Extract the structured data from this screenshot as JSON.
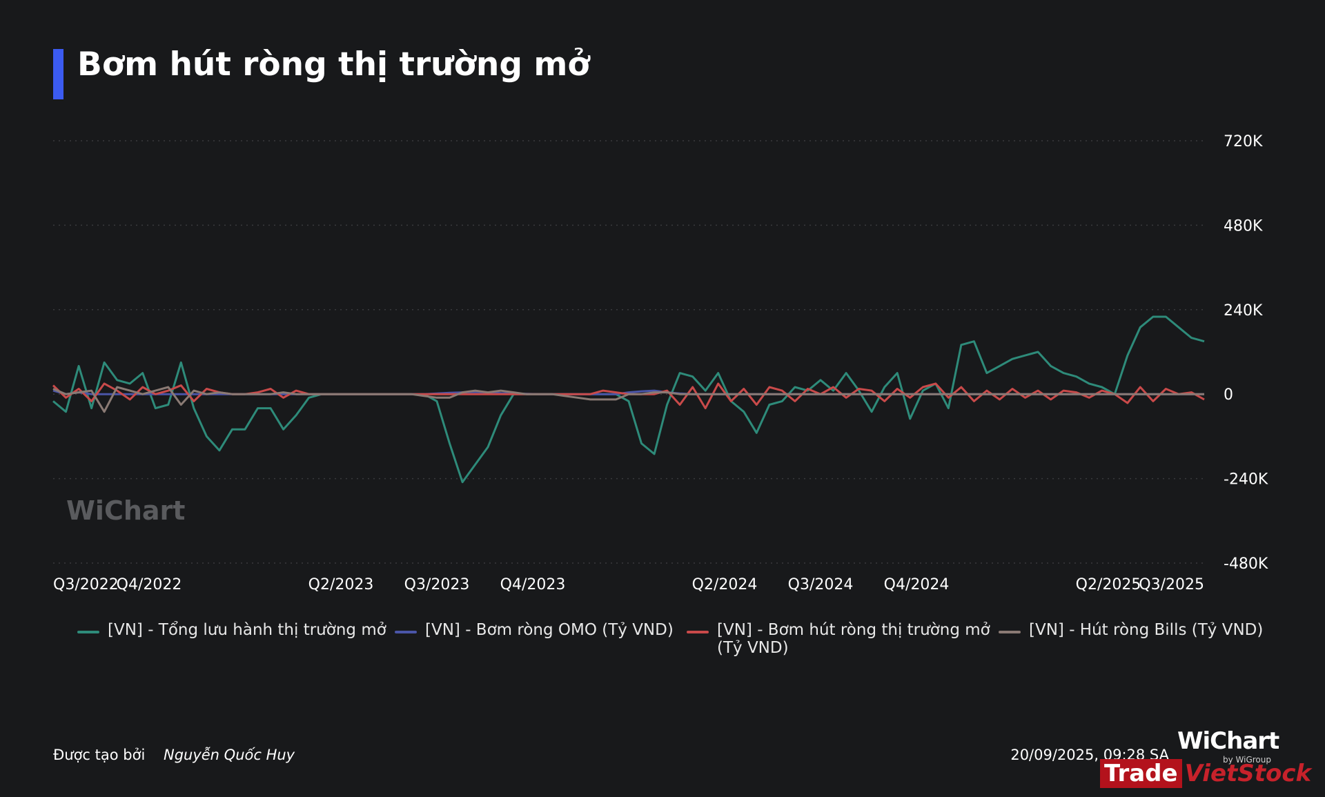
{
  "title": "Bơm hút ròng thị trường mở",
  "watermark": "WiChart",
  "footer": {
    "created_by_label": "Được tạo bởi",
    "author": "Nguyễn Quốc Huy",
    "timestamp": "20/09/2025, 09:28 SA"
  },
  "brand": {
    "name": "WiChart",
    "sub": "by WiGroup",
    "trade": "Trade",
    "vietstock": "VietStock"
  },
  "colors": {
    "background": "#18191b",
    "accent": "#3b5bf0",
    "grid": "#3a3b3e"
  },
  "chart_data": {
    "type": "line",
    "title": "Bơm hút ròng thị trường mở",
    "x_tick_labels": [
      "Q3/2022",
      "Q4/2022",
      "Q2/2023",
      "Q3/2023",
      "Q4/2023",
      "Q2/2024",
      "Q3/2024",
      "Q4/2024",
      "Q2/2025",
      "Q3/2025"
    ],
    "y_tick_labels": [
      "720K",
      "480K",
      "240K",
      "0",
      "-240K",
      "-480K"
    ],
    "y_ticks": [
      720000,
      480000,
      240000,
      0,
      -240000,
      -480000
    ],
    "ylim": [
      -480000,
      720000
    ],
    "y_axis_side": "right",
    "grid": "horizontal dotted",
    "legend_position": "bottom",
    "x_ticks": [
      "Q3/2022",
      "Q4/2022",
      "Q1/2023",
      "Q2/2023",
      "Q3/2023",
      "Q4/2023",
      "Q1/2024",
      "Q2/2024",
      "Q3/2024",
      "Q4/2024",
      "Q1/2025",
      "Q2/2025",
      "Q3/2025"
    ],
    "series": [
      {
        "name": "[VN] - Tổng lưu hành thị trường mở",
        "color": "#2e8b7a",
        "values": [
          -20000,
          -50000,
          80000,
          -40000,
          90000,
          40000,
          30000,
          60000,
          -40000,
          -30000,
          90000,
          -40000,
          -120000,
          -160000,
          -100000,
          -100000,
          -40000,
          -40000,
          -100000,
          -60000,
          -10000,
          0,
          0,
          0,
          0,
          0,
          0,
          0,
          0,
          0,
          -20000,
          -140000,
          -250000,
          -200000,
          -150000,
          -60000,
          0,
          0,
          0,
          0,
          0,
          0,
          0,
          0,
          0,
          -20000,
          -140000,
          -170000,
          -30000,
          60000,
          50000,
          10000,
          60000,
          -20000,
          -50000,
          -110000,
          -30000,
          -20000,
          20000,
          10000,
          40000,
          10000,
          60000,
          10000,
          -50000,
          20000,
          60000,
          -70000,
          10000,
          30000,
          -40000,
          140000,
          150000,
          60000,
          80000,
          100000,
          110000,
          120000,
          80000,
          60000,
          50000,
          30000,
          20000,
          0,
          110000,
          190000,
          220000,
          220000,
          190000,
          160000,
          150000
        ]
      },
      {
        "name": "[VN] - Bơm ròng OMO (Tỷ VND)",
        "color": "#4a55a8",
        "values": [
          10000,
          0,
          5000,
          0,
          0,
          0,
          0,
          0,
          0,
          0,
          0,
          0,
          0,
          0,
          0,
          0,
          0,
          0,
          0,
          0,
          0,
          0,
          0,
          0,
          0,
          0,
          0,
          0,
          0,
          0,
          2000,
          4000,
          5000,
          6000,
          5000,
          3000,
          2000,
          1000,
          0,
          0,
          0,
          0,
          0,
          0,
          0,
          5000,
          8000,
          10000,
          5000,
          2000,
          0,
          0,
          0,
          0,
          0,
          0,
          0,
          0,
          0,
          0,
          0,
          0,
          0,
          0,
          0,
          0,
          0,
          0,
          0,
          0,
          0,
          0,
          0,
          0,
          0,
          0,
          0,
          0,
          0,
          0,
          0,
          0,
          0,
          0,
          0,
          0,
          0,
          0,
          0,
          0,
          0
        ]
      },
      {
        "name": "[VN] - Bơm hút ròng thị trường mở (Tỷ VND)",
        "color": "#c94a4a",
        "values": [
          25000,
          -10000,
          15000,
          -20000,
          30000,
          10000,
          -15000,
          20000,
          0,
          10000,
          25000,
          -20000,
          15000,
          5000,
          0,
          0,
          5000,
          15000,
          -10000,
          10000,
          0,
          0,
          0,
          0,
          0,
          0,
          0,
          0,
          0,
          0,
          0,
          0,
          0,
          0,
          0,
          0,
          0,
          0,
          0,
          0,
          0,
          0,
          0,
          10000,
          5000,
          0,
          0,
          0,
          10000,
          -30000,
          20000,
          -40000,
          30000,
          -20000,
          15000,
          -30000,
          20000,
          10000,
          -20000,
          15000,
          0,
          20000,
          -10000,
          15000,
          10000,
          -20000,
          15000,
          -10000,
          20000,
          30000,
          -10000,
          20000,
          -20000,
          10000,
          -15000,
          15000,
          -10000,
          10000,
          -15000,
          10000,
          5000,
          -10000,
          10000,
          0,
          -25000,
          20000,
          -20000,
          15000,
          0,
          5000,
          -15000
        ]
      },
      {
        "name": "[VN] - Hút ròng Bills (Tỷ VND)",
        "color": "#8a7a74",
        "values": [
          15000,
          0,
          5000,
          10000,
          -50000,
          20000,
          10000,
          0,
          10000,
          20000,
          -30000,
          10000,
          0,
          5000,
          0,
          0,
          0,
          0,
          5000,
          0,
          0,
          0,
          0,
          0,
          0,
          0,
          0,
          0,
          0,
          -5000,
          -10000,
          -10000,
          5000,
          10000,
          5000,
          10000,
          5000,
          0,
          0,
          0,
          -5000,
          -10000,
          -15000,
          -15000,
          -15000,
          0,
          0,
          5000,
          5000,
          0,
          0,
          0,
          0,
          0,
          0,
          0,
          0,
          0,
          0,
          0,
          0,
          0,
          0,
          0,
          0,
          0,
          0,
          0,
          0,
          0,
          0,
          0,
          0,
          0,
          0,
          0,
          0,
          0,
          0,
          0,
          0,
          0,
          0,
          0,
          0,
          0,
          0,
          0,
          0,
          0,
          0
        ]
      }
    ]
  }
}
